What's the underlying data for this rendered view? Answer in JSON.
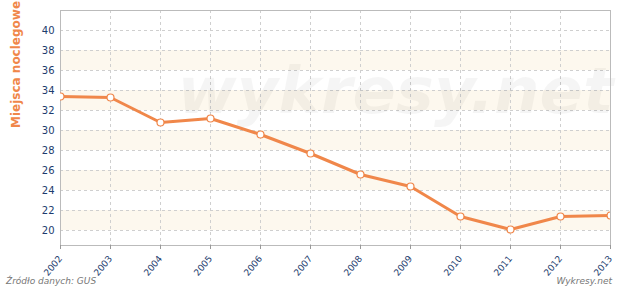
{
  "chart_data": {
    "type": "line",
    "y_label": "Miejsca noclegowe (w tys.)",
    "x": [
      2002,
      2003,
      2004,
      2005,
      2006,
      2007,
      2008,
      2009,
      2010,
      2011,
      2012,
      2013
    ],
    "values": [
      33.4,
      33.3,
      30.8,
      31.2,
      29.6,
      27.7,
      25.6,
      24.4,
      21.4,
      20.1,
      21.4,
      21.5
    ],
    "color": "#f0874a",
    "marker": "circle",
    "xlim": [
      2002,
      2013
    ],
    "xticks": [
      2002,
      2003,
      2004,
      2005,
      2006,
      2007,
      2008,
      2009,
      2010,
      2011,
      2012,
      2013
    ],
    "ylim": [
      18.5,
      42
    ],
    "yticks": [
      20,
      22,
      24,
      26,
      28,
      30,
      32,
      34,
      36,
      38,
      40
    ],
    "grid": true,
    "annotations": [
      "wykresy.net",
      "Źródło danych:  GUS",
      "Wykresy.net"
    ]
  }
}
